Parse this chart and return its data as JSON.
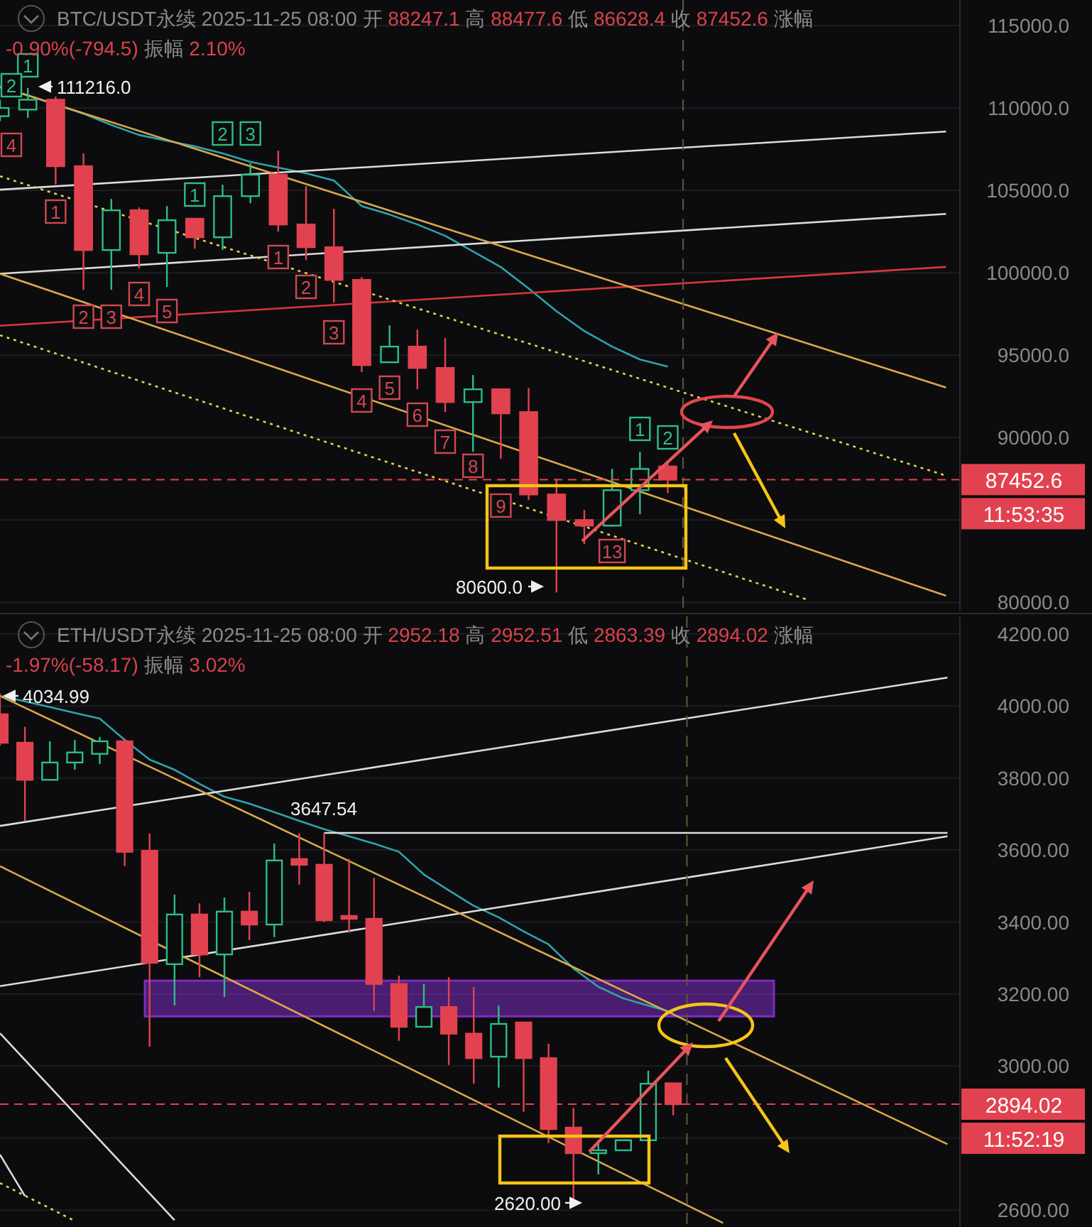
{
  "chart_data": [
    {
      "type": "candlestick",
      "title": "BTC/USDT永续 2025-11-25 08:00 开 88247.1 高 88477.6 低 86628.4 收 87452.6 涨幅",
      "subtitle": "-0.90%(-794.5) 振幅 2.10%",
      "categories": [
        null,
        null,
        null,
        null,
        null,
        null,
        null,
        null,
        null,
        null,
        null,
        null,
        null,
        null,
        null,
        null,
        null,
        null,
        null,
        null,
        null,
        null,
        null,
        null,
        null,
        null,
        null,
        null,
        null,
        null,
        null,
        null,
        null,
        null,
        null
      ],
      "ohlc": [
        [
          109500,
          110500,
          109200,
          110000
        ],
        [
          109900,
          111216,
          109400,
          110500
        ],
        [
          110500,
          110690,
          105350,
          106465
        ],
        [
          106465,
          107240,
          98966,
          101380
        ],
        [
          101380,
          104480,
          98966,
          103790
        ],
        [
          103790,
          103965,
          100260,
          101120
        ],
        [
          101210,
          104050,
          99140,
          103190
        ],
        [
          103280,
          103280,
          101465,
          102155
        ],
        [
          102155,
          105345,
          101380,
          104650
        ],
        [
          104650,
          106640,
          104220,
          105950
        ],
        [
          105950,
          107410,
          102500,
          102930
        ],
        [
          102930,
          105260,
          100775,
          101550
        ],
        [
          101550,
          103880,
          98190,
          99570
        ],
        [
          99570,
          99740,
          93970,
          94400
        ],
        [
          94570,
          96810,
          94570,
          95520
        ],
        [
          95520,
          96550,
          92930,
          94225
        ],
        [
          94225,
          96035,
          91550,
          92155
        ],
        [
          92155,
          93795,
          89140,
          92930
        ],
        [
          92930,
          92930,
          88710,
          91470
        ],
        [
          91550,
          93020,
          86210,
          86550
        ],
        [
          86550,
          87500,
          80600,
          85000
        ],
        [
          85000,
          85600,
          83535,
          84660
        ],
        [
          84660,
          88100,
          84600,
          86810
        ],
        [
          86810,
          89140,
          85350,
          88100
        ],
        [
          88247.1,
          88477.6,
          86628.4,
          87452.6
        ],
        null,
        null,
        null,
        null,
        null,
        null,
        null,
        null,
        null,
        null
      ],
      "colors": [
        "#2ebd85",
        "#2ebd85",
        "#e2424f",
        "#e2424f",
        "#2ebd85",
        "#e2424f",
        "#2ebd85",
        "#e2424f",
        "#2ebd85",
        "#2ebd85",
        "#e2424f",
        "#e2424f",
        "#e2424f",
        "#e2424f",
        "#2ebd85",
        "#e2424f",
        "#e2424f",
        "#2ebd85",
        "#e2424f",
        "#e2424f",
        "#e2424f",
        "#e2424f",
        "#2ebd85",
        "#2ebd85",
        "#e2424f",
        null,
        null,
        null,
        null,
        null,
        null,
        null,
        null,
        null,
        null
      ],
      "ylim": [
        79500,
        116550
      ],
      "yticks": [
        {
          "value": 80000,
          "label": "80000.0"
        },
        {
          "value": 85000,
          "label": null
        },
        {
          "value": 90000,
          "label": "90000.0"
        },
        {
          "value": 95000,
          "label": "95000.0"
        },
        {
          "value": 100000,
          "label": "100000.0"
        },
        {
          "value": 105000,
          "label": "105000.0"
        },
        {
          "value": 110000,
          "label": "110000.0"
        },
        {
          "value": 115000,
          "label": "115000.0"
        }
      ],
      "tick_labels": "y",
      "grid": "y",
      "ref_lines": [
        {
          "axis": "y",
          "value": 87452.6,
          "label": "87452.6",
          "color": "#e2424f",
          "line_style": "dashed"
        }
      ],
      "annotations": [
        "111216.0",
        "80600.0",
        "11:53:35",
        "1",
        "2",
        "1",
        "2",
        "3",
        "1",
        "2",
        "4",
        "1",
        "2",
        "3",
        "4",
        "5",
        "1",
        "2",
        "3",
        "4",
        "5",
        "6",
        "7",
        "8",
        "9",
        "13"
      ],
      "series": [
        {
          "type": "line",
          "color": "#2fa3a8",
          "line_style": "solid",
          "values": [
            111250,
            110775,
            null,
            109650,
            108965,
            108360,
            108015,
            107670,
            107240,
            106725,
            106380,
            106035,
            105600,
            104050,
            103535,
            102930,
            102240,
            101295,
            100345,
            99050,
            97670,
            96465,
            95520,
            94740,
            94310,
            null,
            null,
            null,
            null,
            null,
            null,
            null,
            null,
            null,
            null
          ]
        },
        {
          "type": "line",
          "color": "#dcdcdc",
          "line_style": "solid",
          "values": [
            105040,
            null,
            null,
            null,
            null,
            null,
            null,
            null,
            null,
            null,
            null,
            null,
            null,
            null,
            null,
            null,
            null,
            null,
            null,
            null,
            null,
            null,
            null,
            null,
            null,
            null,
            null,
            null,
            null,
            null,
            null,
            null,
            null,
            null,
            108570
          ]
        },
        {
          "type": "line",
          "color": "#dcdcdc",
          "line_style": "solid",
          "values": [
            99940,
            null,
            null,
            null,
            null,
            null,
            null,
            null,
            null,
            null,
            null,
            null,
            null,
            null,
            null,
            null,
            null,
            null,
            null,
            null,
            null,
            null,
            null,
            null,
            null,
            null,
            null,
            null,
            null,
            null,
            null,
            null,
            null,
            null,
            103570
          ]
        },
        {
          "type": "line",
          "color": "#d9363e",
          "line_style": "solid",
          "values": [
            96785,
            null,
            null,
            null,
            null,
            null,
            null,
            null,
            null,
            null,
            null,
            null,
            null,
            null,
            null,
            null,
            null,
            null,
            null,
            null,
            null,
            null,
            null,
            null,
            null,
            null,
            null,
            null,
            null,
            null,
            null,
            null,
            null,
            null,
            100355
          ]
        },
        {
          "type": "line",
          "color": "#d9a84a",
          "line_style": "solid",
          "values": [
            111290,
            null,
            null,
            null,
            null,
            null,
            null,
            null,
            null,
            null,
            null,
            null,
            null,
            null,
            null,
            null,
            null,
            null,
            null,
            null,
            null,
            null,
            null,
            null,
            null,
            null,
            null,
            null,
            null,
            null,
            null,
            null,
            null,
            null,
            93035
          ]
        },
        {
          "type": "line",
          "color": "#d9a84a",
          "line_style": "solid",
          "values": [
            99940,
            null,
            null,
            null,
            null,
            null,
            null,
            null,
            null,
            null,
            null,
            null,
            null,
            null,
            null,
            null,
            null,
            null,
            null,
            null,
            null,
            null,
            null,
            null,
            null,
            null,
            null,
            null,
            null,
            null,
            null,
            null,
            null,
            null,
            80405
          ]
        },
        {
          "type": "line",
          "color": "#e0d050",
          "line_style": "dotted",
          "values": [
            105860,
            null,
            null,
            null,
            null,
            null,
            null,
            null,
            null,
            null,
            null,
            null,
            null,
            null,
            null,
            null,
            null,
            null,
            null,
            null,
            null,
            null,
            null,
            null,
            null,
            null,
            null,
            null,
            null,
            null,
            null,
            null,
            null,
            null,
            87690
          ]
        },
        {
          "type": "line",
          "color": "#e0d050",
          "line_style": "dotted",
          "values": [
            96210,
            null,
            null,
            null,
            null,
            null,
            null,
            null,
            null,
            null,
            null,
            null,
            null,
            null,
            null,
            null,
            null,
            null,
            null,
            null,
            null,
            null,
            null,
            null,
            null,
            null,
            null,
            null,
            null,
            80180,
            null,
            null,
            null,
            null,
            null
          ]
        }
      ]
    },
    {
      "type": "candlestick",
      "title": "ETH/USDT永续 2025-11-25 08:00 开 2952.18 高 2952.51 低 2863.39 收 2894.02 涨幅",
      "subtitle": "-1.97%(-58.17) 振幅 3.02%",
      "categories": [
        null,
        null,
        null,
        null,
        null,
        null,
        null,
        null,
        null,
        null,
        null,
        null,
        null,
        null,
        null,
        null,
        null,
        null,
        null,
        null,
        null,
        null,
        null,
        null,
        null,
        null,
        null,
        null,
        null,
        null,
        null,
        null,
        null,
        null,
        null,
        null,
        null,
        null,
        null
      ],
      "ohlc": [
        [
          3977,
          4034.99,
          3890,
          3898
        ],
        [
          3898,
          3942,
          3681,
          3795
        ],
        [
          3795,
          3902,
          3795,
          3843
        ],
        [
          3843,
          3906,
          3823,
          3871
        ],
        [
          3867,
          3914,
          3839,
          3902
        ],
        [
          3902,
          3910,
          3555,
          3595
        ],
        [
          3598,
          3646,
          3054,
          3287
        ],
        [
          3283,
          3476,
          3168,
          3421
        ],
        [
          3421,
          3452,
          3247,
          3310
        ],
        [
          3310,
          3468,
          3192,
          3429
        ],
        [
          3429,
          3484,
          3350,
          3393
        ],
        [
          3393,
          3618,
          3358,
          3571
        ],
        [
          3575,
          3646,
          3504,
          3559
        ],
        [
          3559,
          3647.54,
          3400,
          3405
        ],
        [
          3417,
          3575,
          3370,
          3409
        ],
        [
          3409,
          3523,
          3153,
          3228
        ],
        [
          3228,
          3251,
          3070,
          3109
        ],
        [
          3109,
          3228,
          3109,
          3164
        ],
        [
          3164,
          3247,
          3003,
          3090
        ],
        [
          3090,
          3220,
          2951,
          3022
        ],
        [
          3026,
          3168,
          2940,
          3117
        ],
        [
          3121,
          3121,
          2873,
          3022
        ],
        [
          3022,
          3062,
          2786,
          2825
        ],
        [
          2829,
          2884,
          2620,
          2758
        ],
        [
          2758,
          2794,
          2699,
          2766
        ],
        [
          2766,
          2794,
          2766,
          2794
        ],
        [
          2794,
          2987,
          2794,
          2951
        ],
        [
          2952.18,
          2952.51,
          2863.39,
          2894.02
        ],
        null,
        null,
        null,
        null,
        null,
        null,
        null,
        null,
        null,
        null,
        null
      ],
      "colors": [
        "#e2424f",
        "#e2424f",
        "#2ebd85",
        "#2ebd85",
        "#2ebd85",
        "#e2424f",
        "#e2424f",
        "#2ebd85",
        "#e2424f",
        "#2ebd85",
        "#e2424f",
        "#2ebd85",
        "#e2424f",
        "#e2424f",
        "#e2424f",
        "#e2424f",
        "#e2424f",
        "#2ebd85",
        "#e2424f",
        "#e2424f",
        "#2ebd85",
        "#e2424f",
        "#e2424f",
        "#e2424f",
        "#2ebd85",
        "#2ebd85",
        "#2ebd85",
        "#e2424f",
        null,
        null,
        null,
        null,
        null,
        null,
        null,
        null,
        null,
        null,
        null
      ],
      "ylim": [
        2553,
        4249
      ],
      "yticks": [
        {
          "value": 2600,
          "label": "2600.00"
        },
        {
          "value": 2800,
          "label": null
        },
        {
          "value": 3000,
          "label": "3000.00"
        },
        {
          "value": 3200,
          "label": "3200.00"
        },
        {
          "value": 3400,
          "label": "3400.00"
        },
        {
          "value": 3600,
          "label": "3600.00"
        },
        {
          "value": 3800,
          "label": "3800.00"
        },
        {
          "value": 4000,
          "label": "4000.00"
        },
        {
          "value": 4200,
          "label": "4200.00"
        }
      ],
      "tick_labels": "y",
      "grid": "y",
      "bands": [
        {
          "axis": "y",
          "from": 3138,
          "to": 3237,
          "color": "#7b2cbf"
        }
      ],
      "ref_lines": [
        {
          "axis": "y",
          "value": 2894.02,
          "label": "2894.02",
          "color": "#e2424f",
          "line_style": "dashed"
        }
      ],
      "annotations": [
        "4034.99",
        "3647.54",
        "2620.00",
        "11:52:19"
      ],
      "series": [
        {
          "type": "line",
          "color": "#2fa3a8",
          "line_style": "solid",
          "values": [
            4028,
            4013,
            3997,
            3981,
            3965,
            3906,
            3851,
            3823,
            3784,
            3748,
            3729,
            3705,
            3681,
            3658,
            3638,
            3618,
            3595,
            3532,
            3488,
            3445,
            3413,
            3374,
            3338,
            3271,
            3220,
            3188,
            3168,
            3149,
            null,
            null,
            null,
            null,
            null,
            null,
            null,
            null,
            null,
            null,
            null
          ]
        },
        {
          "type": "line",
          "color": "#dcdcdc",
          "line_style": "solid",
          "values": [
            3667,
            null,
            null,
            null,
            null,
            null,
            null,
            null,
            null,
            null,
            null,
            null,
            null,
            null,
            null,
            null,
            null,
            null,
            null,
            null,
            null,
            null,
            null,
            null,
            null,
            null,
            null,
            null,
            null,
            null,
            null,
            null,
            null,
            null,
            null,
            null,
            null,
            null,
            4079
          ]
        },
        {
          "type": "line",
          "color": "#dcdcdc",
          "line_style": "solid",
          "values": [
            3222,
            null,
            null,
            null,
            null,
            null,
            null,
            null,
            null,
            null,
            null,
            null,
            null,
            null,
            null,
            null,
            null,
            null,
            null,
            null,
            null,
            null,
            null,
            null,
            null,
            null,
            null,
            null,
            null,
            null,
            null,
            null,
            null,
            null,
            null,
            null,
            null,
            null,
            3638
          ]
        },
        {
          "type": "line",
          "color": "#dcdcdc",
          "line_style": "solid",
          "values": [
            null,
            null,
            null,
            null,
            null,
            null,
            null,
            null,
            null,
            null,
            null,
            null,
            null,
            3647.54,
            null,
            null,
            null,
            null,
            null,
            null,
            null,
            null,
            null,
            null,
            null,
            null,
            null,
            null,
            null,
            null,
            null,
            null,
            null,
            null,
            null,
            null,
            null,
            null,
            3647.54
          ]
        },
        {
          "type": "line",
          "color": "#d9a84a",
          "line_style": "solid",
          "values": [
            4028,
            null,
            null,
            null,
            null,
            null,
            null,
            null,
            null,
            null,
            null,
            null,
            null,
            null,
            null,
            null,
            null,
            null,
            null,
            null,
            null,
            null,
            null,
            null,
            null,
            null,
            null,
            null,
            null,
            null,
            null,
            null,
            null,
            null,
            null,
            null,
            null,
            null,
            2783
          ]
        },
        {
          "type": "line",
          "color": "#d9a84a",
          "line_style": "solid",
          "values": [
            3555,
            null,
            null,
            null,
            null,
            null,
            null,
            null,
            null,
            null,
            null,
            null,
            null,
            null,
            null,
            null,
            null,
            null,
            null,
            null,
            null,
            null,
            null,
            null,
            null,
            null,
            null,
            null,
            null,
            2564,
            null,
            null,
            null,
            null,
            null,
            null,
            null,
            null,
            null
          ]
        },
        {
          "type": "line",
          "color": "#dcdcdc",
          "line_style": "solid",
          "values": [
            3091,
            null,
            null,
            null,
            null,
            null,
            null,
            2572,
            null,
            null,
            null,
            null,
            null,
            null,
            null,
            null,
            null,
            null,
            null,
            null,
            null,
            null,
            null,
            null,
            null,
            null,
            null,
            null,
            null,
            null,
            null,
            null,
            null,
            null,
            null,
            null,
            null,
            null,
            null
          ]
        },
        {
          "type": "line",
          "color": "#dcdcdc",
          "line_style": "solid",
          "values": [
            2754,
            2639,
            null,
            null,
            null,
            null,
            null,
            null,
            null,
            null,
            null,
            null,
            null,
            null,
            null,
            null,
            null,
            null,
            null,
            null,
            null,
            null,
            null,
            null,
            null,
            null,
            null,
            null,
            null,
            null,
            null,
            null,
            null,
            null,
            null,
            null,
            null,
            null,
            null
          ]
        },
        {
          "type": "line",
          "color": "#e0d050",
          "line_style": "dotted",
          "values": [
            2675,
            null,
            null,
            2570,
            null,
            null,
            null,
            null,
            null,
            null,
            null,
            null,
            null,
            null,
            null,
            null,
            null,
            null,
            null,
            null,
            null,
            null,
            null,
            null,
            null,
            null,
            null,
            null,
            null,
            null,
            null,
            null,
            null,
            null,
            null,
            null,
            null,
            null,
            null
          ]
        }
      ]
    }
  ]
}
